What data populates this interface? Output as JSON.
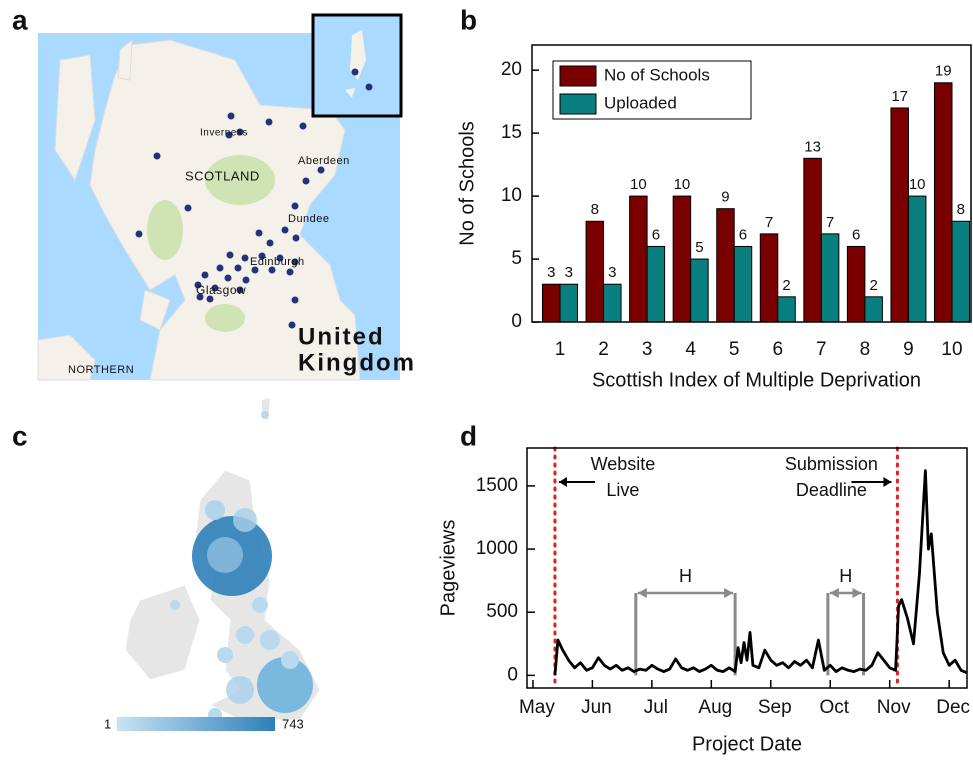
{
  "panel_labels": [
    "a",
    "b",
    "c",
    "d"
  ],
  "map_a": {
    "labels": [
      "SCOTLAND",
      "Inverness",
      "Aberdeen",
      "Dundee",
      "Edinburgh",
      "Glasgow",
      "United",
      "Kingdom",
      "NORTHERN"
    ]
  },
  "map_c": {
    "colorbar": {
      "min": 1,
      "max": 743
    }
  },
  "chart_data": [
    {
      "type": "bar",
      "xlabel": "Scottish Index of Multiple Deprivation",
      "ylabel": "No of Schools",
      "categories": [
        "1",
        "2",
        "3",
        "4",
        "5",
        "6",
        "7",
        "8",
        "9",
        "10"
      ],
      "series": [
        {
          "name": "No of Schools",
          "color": "#7a0000",
          "values": [
            3,
            8,
            10,
            10,
            9,
            7,
            13,
            6,
            17,
            19
          ]
        },
        {
          "name": "Uploaded",
          "color": "#0a7f7f",
          "values": [
            3,
            3,
            6,
            5,
            6,
            2,
            7,
            2,
            10,
            8
          ]
        }
      ],
      "ylim": [
        0,
        22
      ],
      "yticks": [
        0,
        5,
        10,
        15,
        20
      ],
      "legend": "top-left"
    },
    {
      "type": "line",
      "xlabel": "Project Date",
      "ylabel": "Pageviews",
      "xlim": [
        -0.1,
        7.3
      ],
      "xticks": [
        {
          "value": 0,
          "label": "May"
        },
        {
          "value": 1,
          "label": "Jun"
        },
        {
          "value": 2,
          "label": "Jul"
        },
        {
          "value": 3,
          "label": "Aug"
        },
        {
          "value": 4,
          "label": "Sep"
        },
        {
          "value": 5,
          "label": "Oct"
        },
        {
          "value": 6,
          "label": "Nov"
        },
        {
          "value": 7,
          "label": "Dec"
        }
      ],
      "ylim": [
        -100,
        1800
      ],
      "yticks": [
        0,
        500,
        1000,
        1500
      ],
      "series": [
        {
          "name": "Pageviews",
          "color": "#000000",
          "x": [
            0.37,
            0.42,
            0.5,
            0.6,
            0.7,
            0.8,
            0.9,
            1.0,
            1.1,
            1.2,
            1.3,
            1.4,
            1.5,
            1.6,
            1.7,
            1.8,
            1.9,
            2.0,
            2.1,
            2.2,
            2.3,
            2.4,
            2.5,
            2.6,
            2.7,
            2.8,
            2.9,
            3.0,
            3.1,
            3.2,
            3.3,
            3.4,
            3.45,
            3.5,
            3.55,
            3.6,
            3.65,
            3.7,
            3.8,
            3.9,
            4.0,
            4.1,
            4.2,
            4.3,
            4.4,
            4.5,
            4.6,
            4.7,
            4.8,
            4.9,
            5.0,
            5.1,
            5.2,
            5.3,
            5.4,
            5.5,
            5.6,
            5.7,
            5.8,
            5.9,
            6.0,
            6.1,
            6.15,
            6.2,
            6.3,
            6.4,
            6.5,
            6.6,
            6.65,
            6.7,
            6.8,
            6.9,
            7.0,
            7.1,
            7.2,
            7.3
          ],
          "values": [
            0,
            280,
            200,
            120,
            60,
            100,
            40,
            60,
            140,
            80,
            50,
            80,
            40,
            60,
            30,
            50,
            40,
            80,
            50,
            30,
            50,
            130,
            60,
            40,
            60,
            30,
            50,
            80,
            40,
            30,
            60,
            30,
            220,
            100,
            260,
            120,
            340,
            80,
            60,
            200,
            120,
            80,
            100,
            60,
            110,
            80,
            120,
            60,
            280,
            40,
            80,
            30,
            60,
            40,
            30,
            50,
            40,
            80,
            180,
            120,
            60,
            40,
            550,
            600,
            450,
            250,
            800,
            1620,
            1000,
            1120,
            500,
            180,
            80,
            120,
            40,
            20
          ]
        }
      ],
      "events": [
        {
          "x": 0.37,
          "label": [
            "Website",
            "Live"
          ]
        },
        {
          "x": 6.13,
          "label": [
            "Submission",
            "Deadline"
          ]
        }
      ],
      "spans": [
        {
          "x": [
            1.73,
            3.4
          ],
          "label": "H"
        },
        {
          "x": [
            4.96,
            5.56
          ],
          "label": "H"
        }
      ]
    }
  ]
}
